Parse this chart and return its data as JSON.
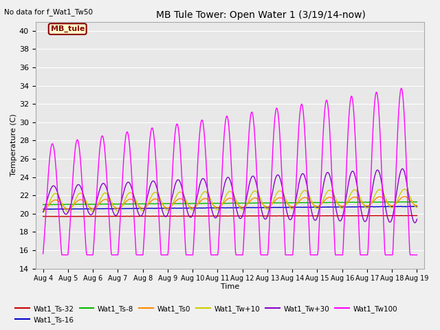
{
  "title": "MB Tule Tower: Open Water 1 (3/19/14-now)",
  "top_left_text": "No data for f_Wat1_Tw50",
  "xlabel": "Time",
  "ylabel": "Temperature (C)",
  "ylim": [
    14,
    41
  ],
  "yticks": [
    14,
    16,
    18,
    20,
    22,
    24,
    26,
    28,
    30,
    32,
    34,
    36,
    38,
    40
  ],
  "xtick_labels": [
    "Aug 4",
    "Aug 5",
    "Aug 6",
    "Aug 7",
    "Aug 8",
    "Aug 9",
    "Aug 10",
    "Aug 11",
    "Aug 12",
    "Aug 13",
    "Aug 14",
    "Aug 15",
    "Aug 16",
    "Aug 17",
    "Aug 18",
    "Aug 19"
  ],
  "legend_box_text": "MB_tule",
  "legend_box_bg": "#ffffcc",
  "legend_box_border": "#880000",
  "series_colors": {
    "Wat1_Ts-32": "#cc0000",
    "Wat1_Ts-16": "#0000cc",
    "Wat1_Ts-8": "#00bb00",
    "Wat1_Ts0": "#ff8800",
    "Wat1_Tw+10": "#cccc00",
    "Wat1_Tw+30": "#8800cc",
    "Wat1_Tw100": "#ff00ff"
  },
  "lw": 1.0
}
